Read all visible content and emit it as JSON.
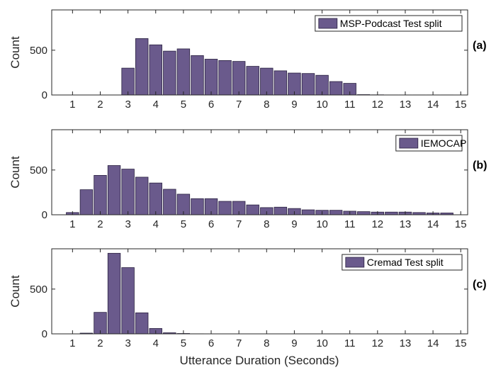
{
  "bar_color": "#6a5a8c",
  "bar_edge_color": "#2a2140",
  "xlabel": "Utterance Duration (Seconds)",
  "chart_data": [
    {
      "type": "bar",
      "panel_tag": "(a)",
      "legend": "MSP-Podcast Test split",
      "ylabel": "Count",
      "xlim": [
        0.25,
        15.25
      ],
      "ylim": [
        0,
        950
      ],
      "xticks": [
        1,
        2,
        3,
        4,
        5,
        6,
        7,
        8,
        9,
        10,
        11,
        12,
        13,
        14,
        15
      ],
      "yticks": [
        0,
        500
      ],
      "bar_width": 0.45,
      "x": [
        3.0,
        3.5,
        4.0,
        4.5,
        5.0,
        5.5,
        6.0,
        6.5,
        7.0,
        7.5,
        8.0,
        8.5,
        9.0,
        9.5,
        10.0,
        10.5,
        11.0,
        11.5,
        12.0,
        12.5,
        13.0,
        13.5,
        14.0,
        14.5
      ],
      "values": [
        300,
        630,
        560,
        490,
        515,
        440,
        400,
        385,
        375,
        320,
        300,
        270,
        245,
        240,
        220,
        150,
        130,
        4,
        2,
        1,
        1,
        1,
        1,
        1
      ]
    },
    {
      "type": "bar",
      "panel_tag": "(b)",
      "legend": "IEMOCAP",
      "ylabel": "Count",
      "xlim": [
        0.25,
        15.25
      ],
      "ylim": [
        0,
        950
      ],
      "xticks": [
        1,
        2,
        3,
        4,
        5,
        6,
        7,
        8,
        9,
        10,
        11,
        12,
        13,
        14,
        15
      ],
      "yticks": [
        0,
        500
      ],
      "bar_width": 0.45,
      "x": [
        1.0,
        1.5,
        2.0,
        2.5,
        3.0,
        3.5,
        4.0,
        4.5,
        5.0,
        5.5,
        6.0,
        6.5,
        7.0,
        7.5,
        8.0,
        8.5,
        9.0,
        9.5,
        10.0,
        10.5,
        11.0,
        11.5,
        12.0,
        12.5,
        13.0,
        13.5,
        14.0,
        14.5
      ],
      "values": [
        25,
        280,
        440,
        550,
        510,
        420,
        355,
        285,
        230,
        180,
        180,
        150,
        150,
        110,
        80,
        85,
        70,
        55,
        50,
        50,
        40,
        35,
        30,
        30,
        30,
        25,
        20,
        20
      ]
    },
    {
      "type": "bar",
      "panel_tag": "(c)",
      "legend": "Cremad Test split",
      "ylabel": "Count",
      "xlim": [
        0.25,
        15.25
      ],
      "ylim": [
        0,
        950
      ],
      "xticks": [
        1,
        2,
        3,
        4,
        5,
        6,
        7,
        8,
        9,
        10,
        11,
        12,
        13,
        14,
        15
      ],
      "yticks": [
        0,
        500
      ],
      "bar_width": 0.45,
      "x": [
        1.5,
        2.0,
        2.5,
        3.0,
        3.5,
        4.0,
        4.5,
        5.0,
        5.5
      ],
      "values": [
        8,
        240,
        900,
        740,
        235,
        60,
        12,
        4,
        1
      ]
    }
  ]
}
